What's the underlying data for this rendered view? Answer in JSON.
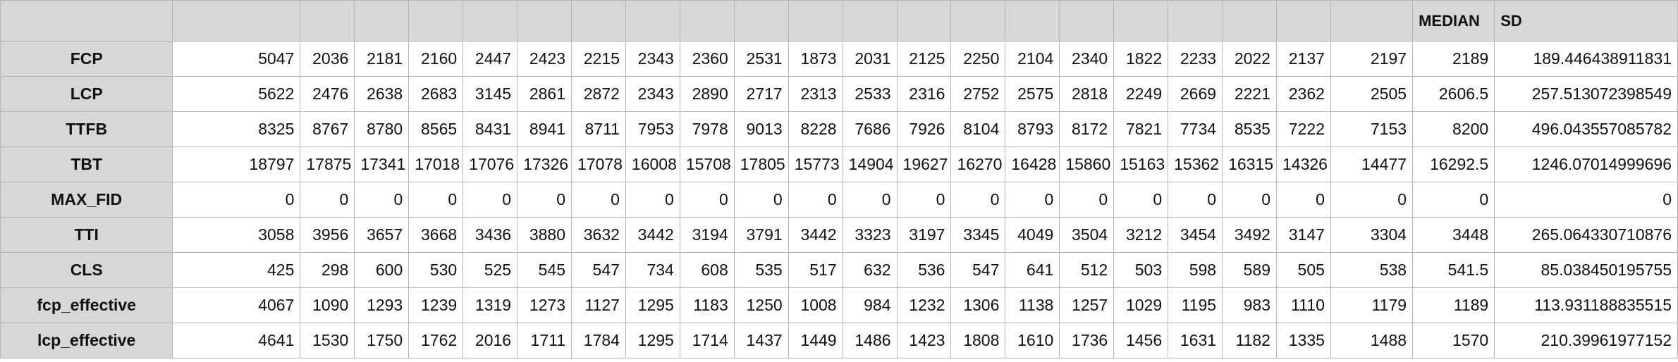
{
  "sheet": {
    "header": [
      "",
      "",
      "",
      "",
      "",
      "",
      "",
      "",
      "",
      "",
      "",
      "",
      "",
      "",
      "",
      "",
      "",
      "",
      "",
      "",
      "",
      "",
      "MEDIAN",
      "SD"
    ],
    "rows": [
      {
        "label": "FCP",
        "values": [
          "5047",
          "2036",
          "2181",
          "2160",
          "2447",
          "2423",
          "2215",
          "2343",
          "2360",
          "2531",
          "1873",
          "2031",
          "2125",
          "2250",
          "2104",
          "2340",
          "1822",
          "2233",
          "2022",
          "2137",
          "2197",
          "2189",
          "189.446438911831"
        ]
      },
      {
        "label": "LCP",
        "values": [
          "5622",
          "2476",
          "2638",
          "2683",
          "3145",
          "2861",
          "2872",
          "2343",
          "2890",
          "2717",
          "2313",
          "2533",
          "2316",
          "2752",
          "2575",
          "2818",
          "2249",
          "2669",
          "2221",
          "2362",
          "2505",
          "2606.5",
          "257.513072398549"
        ]
      },
      {
        "label": "TTFB",
        "values": [
          "8325",
          "8767",
          "8780",
          "8565",
          "8431",
          "8941",
          "8711",
          "7953",
          "7978",
          "9013",
          "8228",
          "7686",
          "7926",
          "8104",
          "8793",
          "8172",
          "7821",
          "7734",
          "8535",
          "7222",
          "7153",
          "8200",
          "496.043557085782"
        ]
      },
      {
        "label": "TBT",
        "values": [
          "18797",
          "17875",
          "17341",
          "17018",
          "17076",
          "17326",
          "17078",
          "16008",
          "15708",
          "17805",
          "15773",
          "14904",
          "19627",
          "16270",
          "16428",
          "15860",
          "15163",
          "15362",
          "16315",
          "14326",
          "14477",
          "16292.5",
          "1246.07014999696"
        ]
      },
      {
        "label": "MAX_FID",
        "values": [
          "0",
          "0",
          "0",
          "0",
          "0",
          "0",
          "0",
          "0",
          "0",
          "0",
          "0",
          "0",
          "0",
          "0",
          "0",
          "0",
          "0",
          "0",
          "0",
          "0",
          "0",
          "0",
          "0"
        ]
      },
      {
        "label": "TTI",
        "values": [
          "3058",
          "3956",
          "3657",
          "3668",
          "3436",
          "3880",
          "3632",
          "3442",
          "3194",
          "3791",
          "3442",
          "3323",
          "3197",
          "3345",
          "4049",
          "3504",
          "3212",
          "3454",
          "3492",
          "3147",
          "3304",
          "3448",
          "265.064330710876"
        ]
      },
      {
        "label": "CLS",
        "values": [
          "425",
          "298",
          "600",
          "530",
          "525",
          "545",
          "547",
          "734",
          "608",
          "535",
          "517",
          "632",
          "536",
          "547",
          "641",
          "512",
          "503",
          "598",
          "589",
          "505",
          "538",
          "541.5",
          "85.038450195755"
        ]
      },
      {
        "label": "fcp_effective",
        "values": [
          "4067",
          "1090",
          "1293",
          "1239",
          "1319",
          "1273",
          "1127",
          "1295",
          "1183",
          "1250",
          "1008",
          "984",
          "1232",
          "1306",
          "1138",
          "1257",
          "1029",
          "1195",
          "983",
          "1110",
          "1179",
          "1189",
          "113.931188835515"
        ]
      },
      {
        "label": "lcp_effective",
        "values": [
          "4641",
          "1530",
          "1750",
          "1762",
          "2016",
          "1711",
          "1784",
          "1295",
          "1714",
          "1437",
          "1449",
          "1486",
          "1423",
          "1808",
          "1610",
          "1736",
          "1456",
          "1631",
          "1182",
          "1335",
          "1488",
          "1570",
          "210.39961977152"
        ]
      }
    ]
  }
}
